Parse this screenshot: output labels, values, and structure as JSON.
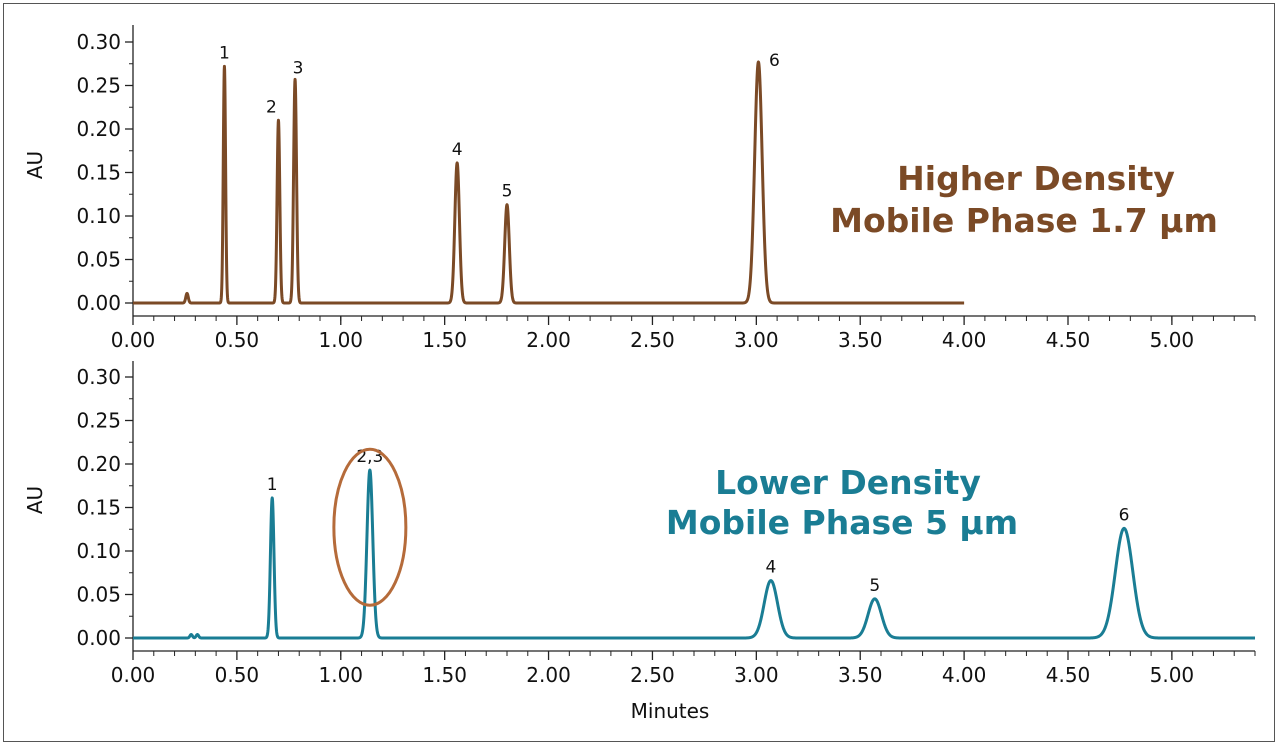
{
  "chart_data": [
    {
      "type": "line",
      "name": "chromatogram-top",
      "color": "#7b4a26",
      "xlim": [
        0,
        5.4
      ],
      "ylim": [
        0,
        0.32
      ],
      "x_end": 4.0,
      "xticks": [
        "0.00",
        "0.50",
        "1.00",
        "1.50",
        "2.00",
        "2.50",
        "3.00",
        "3.50",
        "4.00",
        "4.50",
        "5.00"
      ],
      "yticks": [
        "0.00",
        "0.05",
        "0.10",
        "0.15",
        "0.20",
        "0.25",
        "0.30"
      ],
      "ylabel": "AU",
      "annotation": [
        "Higher Density",
        "Mobile Phase 1.7 µm"
      ],
      "peaks": [
        {
          "label": "",
          "x": 0.26,
          "height": 0.011,
          "width": 0.006
        },
        {
          "label": "1",
          "x": 0.44,
          "height": 0.272,
          "width": 0.0055
        },
        {
          "label": "2",
          "x": 0.7,
          "height": 0.21,
          "width": 0.0065
        },
        {
          "label": "3",
          "x": 0.78,
          "height": 0.257,
          "width": 0.007
        },
        {
          "label": "4",
          "x": 1.56,
          "height": 0.161,
          "width": 0.011
        },
        {
          "label": "5",
          "x": 1.8,
          "height": 0.113,
          "width": 0.011
        },
        {
          "label": "6",
          "x": 3.01,
          "height": 0.277,
          "width": 0.018
        }
      ]
    },
    {
      "type": "line",
      "name": "chromatogram-bottom",
      "color": "#1a7d94",
      "xlim": [
        0,
        5.4
      ],
      "ylim": [
        0,
        0.32
      ],
      "x_end": 5.4,
      "xticks": [
        "0.00",
        "0.50",
        "1.00",
        "1.50",
        "2.00",
        "2.50",
        "3.00",
        "3.50",
        "4.00",
        "4.50",
        "5.00"
      ],
      "yticks": [
        "0.00",
        "0.05",
        "0.10",
        "0.15",
        "0.20",
        "0.25",
        "0.30"
      ],
      "ylabel": "AU",
      "xlabel": "Minutes",
      "annotation": [
        "Lower Density",
        "Mobile Phase 5 µm"
      ],
      "highlight": {
        "color": "#b56b3a",
        "around_peak": "2,3"
      },
      "peaks": [
        {
          "label": "",
          "x": 0.28,
          "height": 0.004,
          "width": 0.006
        },
        {
          "label": "",
          "x": 0.31,
          "height": 0.004,
          "width": 0.006
        },
        {
          "label": "1",
          "x": 0.67,
          "height": 0.161,
          "width": 0.0085
        },
        {
          "label": "2,3",
          "x": 1.14,
          "height": 0.193,
          "width": 0.014
        },
        {
          "label": "4",
          "x": 3.07,
          "height": 0.066,
          "width": 0.032
        },
        {
          "label": "5",
          "x": 3.57,
          "height": 0.045,
          "width": 0.032
        },
        {
          "label": "6",
          "x": 4.77,
          "height": 0.126,
          "width": 0.042
        }
      ]
    }
  ]
}
